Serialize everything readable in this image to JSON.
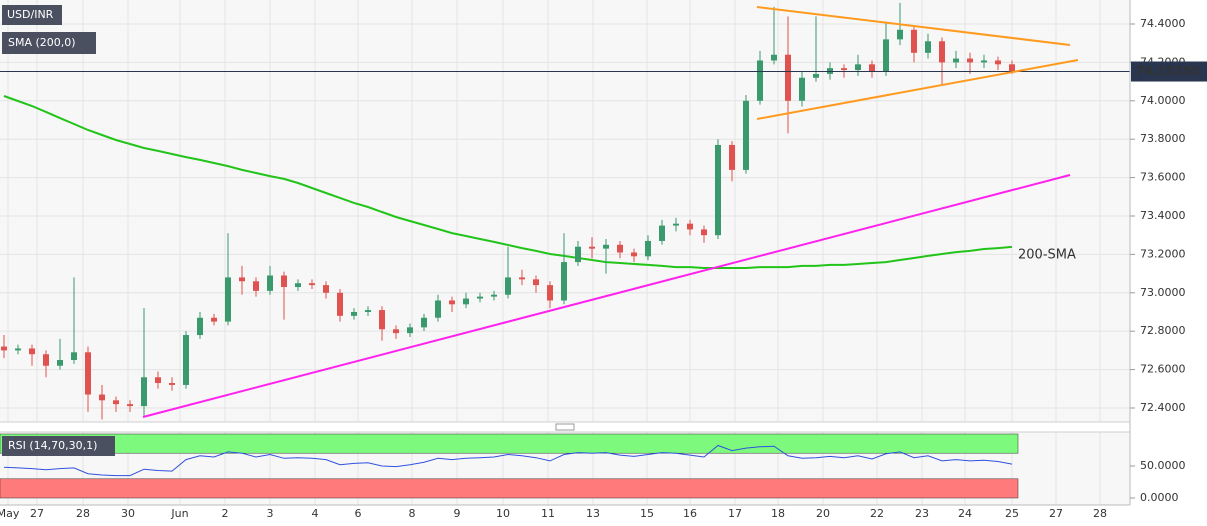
{
  "chart_data": {
    "type": "candlestick",
    "title": "USD/INR",
    "sma_label": "SMA (200,0)",
    "sma_annotation": "200-SMA",
    "rsi_label": "RSI (14,70,30,1)",
    "up_color": "#3a9a6e",
    "down_color": "#e0524f",
    "sma_color": "#22c41a",
    "rsi_color": "#3050e0",
    "grid": true,
    "ylim": [
      72.327,
      74.525
    ],
    "yticks": [
      {
        "value": 72.4,
        "label": "72.4000"
      },
      {
        "value": 72.6,
        "label": "72.6000"
      },
      {
        "value": 72.8,
        "label": "72.8000"
      },
      {
        "value": 73.0,
        "label": "73.0000"
      },
      {
        "value": 73.2,
        "label": "73.2000"
      },
      {
        "value": 73.4,
        "label": "73.4000"
      },
      {
        "value": 73.6,
        "label": "73.6000"
      },
      {
        "value": 73.8,
        "label": "73.8000"
      },
      {
        "value": 74.0,
        "label": "74.0000"
      },
      {
        "value": 74.2,
        "label": "74.2000"
      },
      {
        "value": 74.4,
        "label": "74.4000"
      }
    ],
    "last_price": {
      "value": 74.1525,
      "label": "74.15250"
    },
    "x_labels": [
      "May",
      "27",
      "28",
      "30",
      "Jun",
      "2",
      "3",
      "4",
      "6",
      "8",
      "9",
      "10",
      "11",
      "13",
      "15",
      "16",
      "17",
      "18",
      "20",
      "22",
      "23",
      "24",
      "25",
      "27",
      "28"
    ],
    "open": [
      72.72,
      72.7,
      72.71,
      72.68,
      72.62,
      72.65,
      72.69,
      72.47,
      72.44,
      72.42,
      72.41,
      72.56,
      72.53,
      72.52,
      72.78,
      72.87,
      72.85,
      73.08,
      73.06,
      73.01,
      73.09,
      73.03,
      73.05,
      73.04,
      73.0,
      72.88,
      72.9,
      72.91,
      72.81,
      72.79,
      72.82,
      72.87,
      72.96,
      72.94,
      72.97,
      72.98,
      72.99,
      73.08,
      73.07,
      73.04,
      72.96,
      73.16,
      73.24,
      73.23,
      73.25,
      73.21,
      73.19,
      73.27,
      73.35,
      73.36,
      73.33,
      73.3,
      73.77,
      73.64,
      74.0,
      74.21,
      74.24,
      74.0,
      74.12,
      74.14,
      74.17,
      74.16,
      74.19,
      74.15,
      74.32,
      74.37,
      74.25,
      74.31,
      74.2,
      74.22,
      74.2,
      74.21,
      74.19
    ],
    "high": [
      72.78,
      72.73,
      72.73,
      72.7,
      72.76,
      73.08,
      72.72,
      72.52,
      72.46,
      72.44,
      72.92,
      72.59,
      72.56,
      72.8,
      72.9,
      72.89,
      73.31,
      73.14,
      73.08,
      73.14,
      73.11,
      73.07,
      73.07,
      73.06,
      73.02,
      72.92,
      72.93,
      72.93,
      72.83,
      72.84,
      72.89,
      72.99,
      72.98,
      73.0,
      73.0,
      73.01,
      73.24,
      73.12,
      73.09,
      73.06,
      73.31,
      73.27,
      73.29,
      73.28,
      73.27,
      73.23,
      73.3,
      73.38,
      73.39,
      73.38,
      73.35,
      73.8,
      73.79,
      74.03,
      74.26,
      74.49,
      74.44,
      74.15,
      74.44,
      74.2,
      74.19,
      74.24,
      74.21,
      74.41,
      74.51,
      74.39,
      74.35,
      74.33,
      74.26,
      74.25,
      74.24,
      74.23,
      74.21
    ],
    "low": [
      72.66,
      72.68,
      72.62,
      72.56,
      72.6,
      72.63,
      72.38,
      72.34,
      72.38,
      72.38,
      72.36,
      72.5,
      72.49,
      72.5,
      72.76,
      72.83,
      72.83,
      72.99,
      72.98,
      72.99,
      72.86,
      73.01,
      73.02,
      72.97,
      72.85,
      72.86,
      72.88,
      72.75,
      72.76,
      72.77,
      72.8,
      72.85,
      72.9,
      72.92,
      72.95,
      72.96,
      72.97,
      73.04,
      73.0,
      72.92,
      72.94,
      73.14,
      73.18,
      73.1,
      73.18,
      73.16,
      73.17,
      73.25,
      73.32,
      73.3,
      73.26,
      73.28,
      73.58,
      73.62,
      73.98,
      74.19,
      73.83,
      73.97,
      74.1,
      74.11,
      74.12,
      74.13,
      74.12,
      74.13,
      74.29,
      74.2,
      74.22,
      74.08,
      74.17,
      74.14,
      74.17,
      74.16,
      74.14
    ],
    "close": [
      72.7,
      72.71,
      72.68,
      72.62,
      72.65,
      72.69,
      72.47,
      72.44,
      72.42,
      72.41,
      72.56,
      72.53,
      72.52,
      72.78,
      72.87,
      72.85,
      73.08,
      73.06,
      73.01,
      73.09,
      73.03,
      73.05,
      73.04,
      73.0,
      72.88,
      72.9,
      72.91,
      72.81,
      72.79,
      72.82,
      72.87,
      72.96,
      72.94,
      72.97,
      72.98,
      72.99,
      73.08,
      73.07,
      73.04,
      72.96,
      73.16,
      73.24,
      73.23,
      73.25,
      73.21,
      73.19,
      73.27,
      73.35,
      73.36,
      73.33,
      73.3,
      73.77,
      73.64,
      74.0,
      74.21,
      74.24,
      74.0,
      74.12,
      74.14,
      74.17,
      74.16,
      74.19,
      74.15,
      74.32,
      74.37,
      74.25,
      74.31,
      74.2,
      74.22,
      74.2,
      74.21,
      74.19,
      74.1525
    ],
    "sma": [
      74.025,
      73.999,
      73.973,
      73.942,
      73.91,
      73.879,
      73.848,
      73.822,
      73.796,
      73.775,
      73.754,
      73.739,
      73.723,
      73.707,
      73.692,
      73.676,
      73.66,
      73.64,
      73.624,
      73.608,
      73.593,
      73.572,
      73.546,
      73.52,
      73.494,
      73.468,
      73.447,
      73.421,
      73.395,
      73.374,
      73.353,
      73.332,
      73.311,
      73.296,
      73.28,
      73.265,
      73.249,
      73.233,
      73.218,
      73.202,
      73.192,
      73.181,
      73.171,
      73.16,
      73.155,
      73.15,
      73.145,
      73.14,
      73.134,
      73.134,
      73.129,
      73.129,
      73.129,
      73.129,
      73.134,
      73.134,
      73.134,
      73.14,
      73.14,
      73.145,
      73.145,
      73.15,
      73.155,
      73.16,
      73.171,
      73.181,
      73.192,
      73.202,
      73.212,
      73.218,
      73.228,
      73.233,
      73.239
    ],
    "rsi": [
      48,
      47,
      46,
      44,
      46,
      47,
      38,
      36,
      35,
      35,
      45,
      43,
      42,
      60,
      66,
      64,
      72,
      70,
      64,
      68,
      62,
      63,
      62,
      60,
      52,
      54,
      55,
      50,
      49,
      52,
      56,
      62,
      60,
      62,
      63,
      64,
      68,
      66,
      63,
      58,
      68,
      71,
      70,
      71,
      67,
      65,
      68,
      71,
      70,
      67,
      64,
      82,
      74,
      78,
      80,
      81,
      66,
      62,
      63,
      65,
      63,
      66,
      61,
      69,
      72,
      63,
      66,
      58,
      60,
      58,
      59,
      57,
      53
    ],
    "rsi_ylim": [
      0,
      100
    ],
    "rsi_yticks": [
      {
        "value": 0,
        "label": "0.0000"
      },
      {
        "value": 50,
        "label": "50.0000"
      }
    ],
    "rsi_upper": 70,
    "rsi_lower": 30
  }
}
